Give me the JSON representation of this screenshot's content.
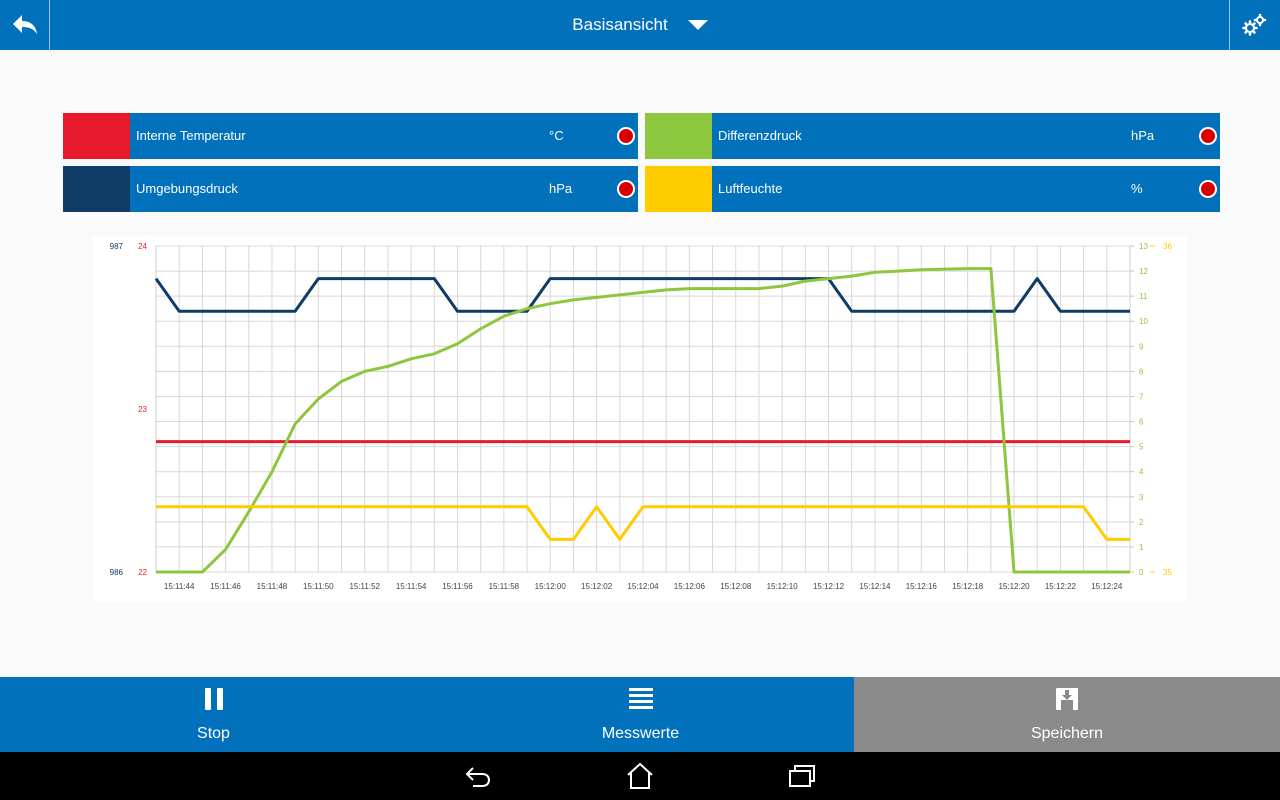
{
  "header": {
    "title": "Basisansicht"
  },
  "icons": {
    "back": "back-arrow-icon",
    "settings": "gears-icon",
    "dropdown": "triangle-down-icon"
  },
  "channels": [
    {
      "name": "Interne Temperatur",
      "unit": "°C",
      "color": "#e8192c"
    },
    {
      "name": "Differenzdruck",
      "unit": "hPa",
      "color": "#8dc63f"
    },
    {
      "name": "Umgebungsdruck",
      "unit": "hPa",
      "color": "#0e3c66"
    },
    {
      "name": "Luftfeuchte",
      "unit": "%",
      "color": "#ffcc00"
    }
  ],
  "chart_data": {
    "type": "line",
    "x": [
      "15:11:43",
      "15:11:44",
      "15:11:45",
      "15:11:46",
      "15:11:47",
      "15:11:48",
      "15:11:49",
      "15:11:50",
      "15:11:51",
      "15:11:52",
      "15:11:53",
      "15:11:54",
      "15:11:55",
      "15:11:56",
      "15:11:57",
      "15:11:58",
      "15:11:59",
      "15:12:00",
      "15:12:01",
      "15:12:02",
      "15:12:03",
      "15:12:04",
      "15:12:05",
      "15:12:06",
      "15:12:07",
      "15:12:08",
      "15:12:09",
      "15:12:10",
      "15:12:11",
      "15:12:12",
      "15:12:13",
      "15:12:14",
      "15:12:15",
      "15:12:16",
      "15:12:17",
      "15:12:18",
      "15:12:19",
      "15:12:20",
      "15:12:21",
      "15:12:22",
      "15:12:23",
      "15:12:24",
      "15:12:25"
    ],
    "xticks": [
      "15:11:44",
      "15:11:46",
      "15:11:48",
      "15:11:50",
      "15:11:52",
      "15:11:54",
      "15:11:56",
      "15:11:58",
      "15:12:00",
      "15:12:02",
      "15:12:04",
      "15:12:06",
      "15:12:08",
      "15:12:10",
      "15:12:12",
      "15:12:14",
      "15:12:16",
      "15:12:18",
      "15:12:20",
      "15:12:22",
      "15:12:24"
    ],
    "axes": {
      "umgebungsdruck": {
        "min": 986,
        "max": 987,
        "ticks": [
          "987",
          "986"
        ],
        "color": "#0e3c66",
        "side": "left-outer"
      },
      "temperatur": {
        "min": 22,
        "max": 24,
        "ticks": [
          "24",
          "23",
          "22"
        ],
        "color": "#e8192c",
        "side": "left-inner"
      },
      "differenzdruck": {
        "min": 0,
        "max": 13,
        "ticks": [
          "13",
          "12",
          "11",
          "10",
          "9",
          "8",
          "7",
          "6",
          "5",
          "4",
          "3",
          "2",
          "1",
          "0"
        ],
        "color": "#8dc63f",
        "side": "right-inner"
      },
      "luftfeuchte": {
        "min": 35,
        "max": 36,
        "ticks": [
          "36",
          "35"
        ],
        "color": "#ffcc00",
        "side": "right-outer"
      }
    },
    "grid": true,
    "series": [
      {
        "name": "Umgebungsdruck",
        "color": "#0e3c66",
        "axis": "umgebungsdruck",
        "values": [
          986.9,
          986.8,
          986.8,
          986.8,
          986.8,
          986.8,
          986.8,
          986.9,
          986.9,
          986.9,
          986.9,
          986.9,
          986.9,
          986.8,
          986.8,
          986.8,
          986.8,
          986.9,
          986.9,
          986.9,
          986.9,
          986.9,
          986.9,
          986.9,
          986.9,
          986.9,
          986.9,
          986.9,
          986.9,
          986.9,
          986.8,
          986.8,
          986.8,
          986.8,
          986.8,
          986.8,
          986.8,
          986.8,
          986.9,
          986.8,
          986.8,
          986.8,
          986.8
        ]
      },
      {
        "name": "Interne Temperatur",
        "color": "#e8192c",
        "axis": "temperatur",
        "values": [
          22.8,
          22.8,
          22.8,
          22.8,
          22.8,
          22.8,
          22.8,
          22.8,
          22.8,
          22.8,
          22.8,
          22.8,
          22.8,
          22.8,
          22.8,
          22.8,
          22.8,
          22.8,
          22.8,
          22.8,
          22.8,
          22.8,
          22.8,
          22.8,
          22.8,
          22.8,
          22.8,
          22.8,
          22.8,
          22.8,
          22.8,
          22.8,
          22.8,
          22.8,
          22.8,
          22.8,
          22.8,
          22.8,
          22.8,
          22.8,
          22.8,
          22.8,
          22.8
        ]
      },
      {
        "name": "Differenzdruck",
        "color": "#8dc63f",
        "axis": "differenzdruck",
        "values": [
          0,
          0,
          0,
          0.9,
          2.4,
          4,
          5.9,
          6.9,
          7.6,
          8.0,
          8.2,
          8.5,
          8.7,
          9.1,
          9.7,
          10.2,
          10.5,
          10.7,
          10.85,
          10.95,
          11.05,
          11.15,
          11.25,
          11.3,
          11.3,
          11.3,
          11.3,
          11.4,
          11.6,
          11.7,
          11.8,
          11.95,
          12.0,
          12.05,
          12.08,
          12.1,
          12.1,
          0,
          0,
          0,
          0,
          0,
          0
        ]
      },
      {
        "name": "Luftfeuchte",
        "color": "#ffcc00",
        "axis": "luftfeuchte",
        "values": [
          35.2,
          35.2,
          35.2,
          35.2,
          35.2,
          35.2,
          35.2,
          35.2,
          35.2,
          35.2,
          35.2,
          35.2,
          35.2,
          35.2,
          35.2,
          35.2,
          35.2,
          35.1,
          35.1,
          35.2,
          35.1,
          35.2,
          35.2,
          35.2,
          35.2,
          35.2,
          35.2,
          35.2,
          35.2,
          35.2,
          35.2,
          35.2,
          35.2,
          35.2,
          35.2,
          35.2,
          35.2,
          35.2,
          35.2,
          35.2,
          35.2,
          35.1,
          35.1
        ]
      }
    ]
  },
  "bottom": {
    "stop": {
      "label": "Stop",
      "icon": "pause-icon",
      "bg": "#0171bb"
    },
    "messwerte": {
      "label": "Messwerte",
      "icon": "list-icon",
      "bg": "#0171bb"
    },
    "speichern": {
      "label": "Speichern",
      "icon": "save-icon",
      "bg": "#8a8a8a"
    }
  },
  "navbar": {
    "back": "nav-back-icon",
    "home": "nav-home-icon",
    "recents": "nav-recents-icon"
  }
}
